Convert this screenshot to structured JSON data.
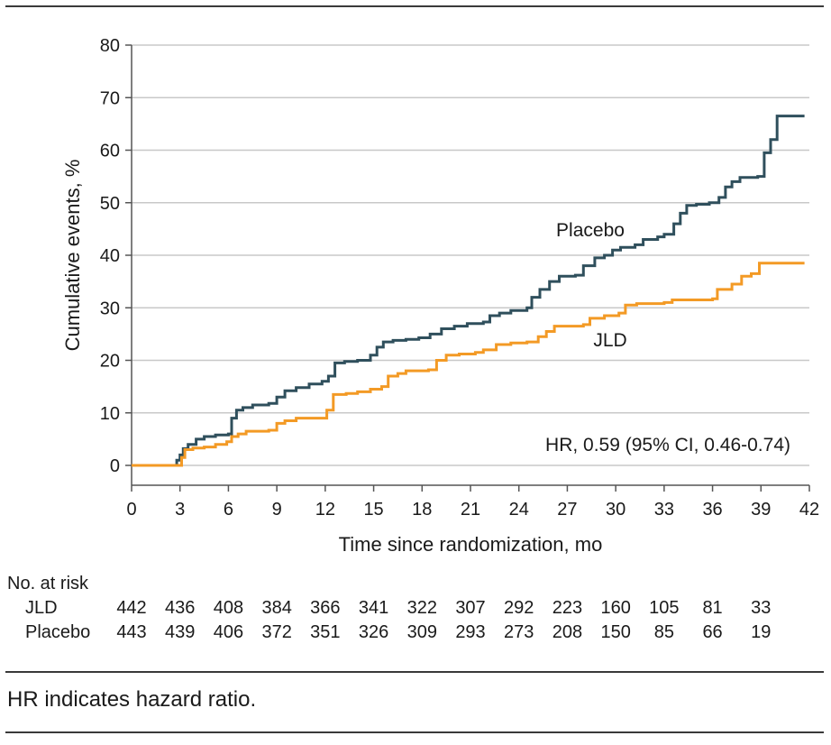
{
  "chart_data": {
    "type": "line",
    "title": "",
    "xlabel": "Time since randomization, mo",
    "ylabel": "Cumulative events, %",
    "xlim": [
      0,
      42
    ],
    "ylim": [
      0,
      80
    ],
    "x_ticks": [
      0,
      3,
      6,
      9,
      12,
      15,
      18,
      21,
      24,
      27,
      30,
      33,
      36,
      39,
      42
    ],
    "y_ticks": [
      0,
      10,
      20,
      30,
      40,
      50,
      60,
      70,
      80
    ],
    "grid": "horizontal",
    "annotation": "HR, 0.59 (95% CI, 0.46-0.74)",
    "series": [
      {
        "name": "Placebo",
        "color": "#2f4f5c",
        "points": [
          [
            0,
            0
          ],
          [
            2.6,
            0
          ],
          [
            2.8,
            1
          ],
          [
            3.0,
            2
          ],
          [
            3.2,
            3.2
          ],
          [
            3.5,
            4
          ],
          [
            4.0,
            5
          ],
          [
            4.5,
            5.5
          ],
          [
            5.2,
            5.8
          ],
          [
            6.0,
            6
          ],
          [
            6.2,
            9
          ],
          [
            6.5,
            10.5
          ],
          [
            6.9,
            11
          ],
          [
            7.5,
            11.5
          ],
          [
            8.5,
            11.8
          ],
          [
            9.0,
            13
          ],
          [
            9.5,
            14.2
          ],
          [
            10.2,
            14.8
          ],
          [
            11.0,
            15.5
          ],
          [
            11.8,
            16
          ],
          [
            12.2,
            17
          ],
          [
            12.6,
            19.5
          ],
          [
            13.2,
            19.8
          ],
          [
            14.0,
            20
          ],
          [
            14.8,
            21
          ],
          [
            15.2,
            22.5
          ],
          [
            15.6,
            23.5
          ],
          [
            16.2,
            23.8
          ],
          [
            17.0,
            24
          ],
          [
            17.8,
            24.3
          ],
          [
            18.5,
            25
          ],
          [
            19.2,
            26
          ],
          [
            20.0,
            26.5
          ],
          [
            20.8,
            27
          ],
          [
            21.8,
            27.3
          ],
          [
            22.2,
            28.5
          ],
          [
            22.8,
            29
          ],
          [
            23.5,
            29.5
          ],
          [
            24.5,
            30
          ],
          [
            24.8,
            32
          ],
          [
            25.3,
            33.5
          ],
          [
            25.9,
            35
          ],
          [
            26.5,
            36
          ],
          [
            27.5,
            36.2
          ],
          [
            28.0,
            38
          ],
          [
            28.7,
            39.5
          ],
          [
            29.3,
            40
          ],
          [
            29.8,
            41
          ],
          [
            30.3,
            41.5
          ],
          [
            31.2,
            42
          ],
          [
            31.7,
            43
          ],
          [
            32.6,
            43.5
          ],
          [
            33.0,
            44
          ],
          [
            33.6,
            46
          ],
          [
            34.0,
            48
          ],
          [
            34.4,
            49.5
          ],
          [
            35.0,
            49.7
          ],
          [
            35.8,
            50
          ],
          [
            36.4,
            51
          ],
          [
            36.8,
            53
          ],
          [
            37.2,
            54
          ],
          [
            37.7,
            54.8
          ],
          [
            38.3,
            54.8
          ],
          [
            38.8,
            55
          ],
          [
            39.2,
            59.5
          ],
          [
            39.6,
            62
          ],
          [
            40.0,
            66.5
          ],
          [
            41.7,
            66.5
          ]
        ]
      },
      {
        "name": "JLD",
        "color": "#f39a25",
        "points": [
          [
            0,
            0
          ],
          [
            2.9,
            0
          ],
          [
            3.1,
            1.5
          ],
          [
            3.3,
            3
          ],
          [
            3.8,
            3.3
          ],
          [
            4.5,
            3.5
          ],
          [
            5.2,
            4
          ],
          [
            5.9,
            4.5
          ],
          [
            6.2,
            5.5
          ],
          [
            6.6,
            6
          ],
          [
            7.1,
            6.5
          ],
          [
            8.5,
            6.7
          ],
          [
            9.0,
            8
          ],
          [
            9.5,
            8.5
          ],
          [
            10.2,
            9
          ],
          [
            11.8,
            9
          ],
          [
            12.1,
            10.5
          ],
          [
            12.5,
            13.5
          ],
          [
            13.3,
            13.7
          ],
          [
            14.0,
            14
          ],
          [
            14.8,
            14.5
          ],
          [
            15.5,
            15
          ],
          [
            15.9,
            17
          ],
          [
            16.5,
            17.5
          ],
          [
            17.0,
            18
          ],
          [
            18.4,
            18.2
          ],
          [
            18.9,
            20
          ],
          [
            19.5,
            21
          ],
          [
            20.3,
            21.2
          ],
          [
            21.3,
            21.5
          ],
          [
            21.8,
            22
          ],
          [
            22.6,
            23
          ],
          [
            23.5,
            23.3
          ],
          [
            24.5,
            23.5
          ],
          [
            25.2,
            24.5
          ],
          [
            25.7,
            25.5
          ],
          [
            26.2,
            26.5
          ],
          [
            28.0,
            26.8
          ],
          [
            28.4,
            28
          ],
          [
            29.3,
            28.5
          ],
          [
            30.2,
            29
          ],
          [
            30.6,
            30.5
          ],
          [
            31.3,
            30.8
          ],
          [
            33.0,
            31
          ],
          [
            33.5,
            31.5
          ],
          [
            36.0,
            31.7
          ],
          [
            36.3,
            33.5
          ],
          [
            37.2,
            34.5
          ],
          [
            37.8,
            36
          ],
          [
            38.4,
            36.5
          ],
          [
            38.9,
            38.5
          ],
          [
            41.7,
            38.5
          ]
        ]
      }
    ],
    "series_labels": [
      "Placebo",
      "JLD"
    ]
  },
  "risk_table": {
    "title": "No. at risk",
    "rows": [
      {
        "label": "JLD",
        "values": [
          "442",
          "436",
          "408",
          "384",
          "366",
          "341",
          "322",
          "307",
          "292",
          "223",
          "160",
          "105",
          "81",
          "33"
        ]
      },
      {
        "label": "Placebo",
        "values": [
          "443",
          "439",
          "406",
          "372",
          "351",
          "326",
          "309",
          "293",
          "273",
          "208",
          "150",
          "85",
          "66",
          "19"
        ]
      }
    ]
  },
  "caption": "HR indicates hazard ratio."
}
